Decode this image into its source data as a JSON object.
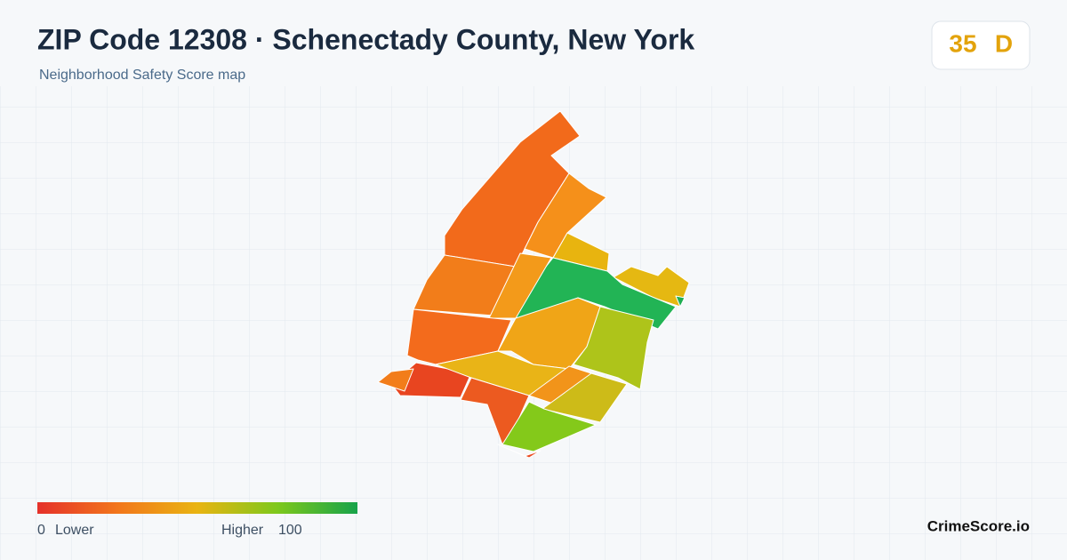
{
  "header": {
    "title": "ZIP Code 12308 · Schenectady County, New York",
    "subtitle": "Neighborhood Safety Score map"
  },
  "score": {
    "value": "35",
    "grade": "D"
  },
  "legend": {
    "min": "0",
    "min_label": "Lower",
    "max_label": "Higher",
    "max": "100"
  },
  "brand": "CrimeScore.io"
}
